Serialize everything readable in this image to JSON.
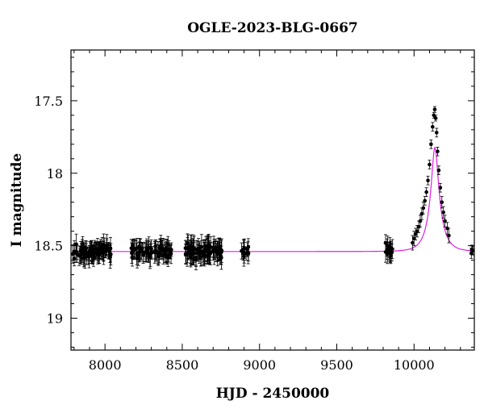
{
  "chart_data": {
    "type": "scatter",
    "title": "OGLE-2023-BLG-0667",
    "xlabel": "HJD - 2450000",
    "ylabel": "I magnitude",
    "xlim": [
      7780,
      10390
    ],
    "ylim": [
      19.22,
      17.15
    ],
    "y_inverted": true,
    "grid": false,
    "x_ticks": [
      8000,
      8500,
      9000,
      9500,
      10000
    ],
    "y_ticks": [
      17.5,
      18,
      18.5,
      19
    ],
    "x_tick_labels": [
      "8000",
      "8500",
      "9000",
      "9500",
      "10000"
    ],
    "y_tick_labels": [
      "17.5",
      "18",
      "18.5",
      "19"
    ],
    "colors": {
      "points": "#000000",
      "model": "#e020e0",
      "axes": "#000000"
    },
    "baseline_mag": 18.54,
    "clusters": [
      {
        "x_range": [
          7790,
          8040
        ],
        "mag": 18.54,
        "spread": 0.05,
        "error": 0.06,
        "count": 90
      },
      {
        "x_range": [
          8170,
          8430
        ],
        "mag": 18.54,
        "spread": 0.05,
        "error": 0.06,
        "count": 80
      },
      {
        "x_range": [
          8520,
          8760
        ],
        "mag": 18.54,
        "spread": 0.05,
        "error": 0.07,
        "count": 90
      },
      {
        "x_range": [
          8880,
          8930
        ],
        "mag": 18.54,
        "spread": 0.05,
        "error": 0.06,
        "count": 12
      },
      {
        "x_range": [
          9800,
          9860
        ],
        "mag": 18.53,
        "spread": 0.05,
        "error": 0.06,
        "count": 16
      },
      {
        "x_range": [
          10360,
          10390
        ],
        "mag": 18.53,
        "spread": 0.02,
        "error": 0.03,
        "count": 5
      }
    ],
    "event_points": [
      {
        "x": 9990,
        "y": 18.48,
        "err": 0.05
      },
      {
        "x": 10000,
        "y": 18.45,
        "err": 0.05
      },
      {
        "x": 10010,
        "y": 18.42,
        "err": 0.04
      },
      {
        "x": 10020,
        "y": 18.4,
        "err": 0.04
      },
      {
        "x": 10030,
        "y": 18.37,
        "err": 0.04
      },
      {
        "x": 10040,
        "y": 18.33,
        "err": 0.04
      },
      {
        "x": 10050,
        "y": 18.28,
        "err": 0.04
      },
      {
        "x": 10060,
        "y": 18.24,
        "err": 0.04
      },
      {
        "x": 10070,
        "y": 18.19,
        "err": 0.03
      },
      {
        "x": 10080,
        "y": 18.13,
        "err": 0.03
      },
      {
        "x": 10090,
        "y": 18.05,
        "err": 0.03
      },
      {
        "x": 10100,
        "y": 17.94,
        "err": 0.03
      },
      {
        "x": 10110,
        "y": 17.8,
        "err": 0.03
      },
      {
        "x": 10120,
        "y": 17.68,
        "err": 0.03
      },
      {
        "x": 10128,
        "y": 17.6,
        "err": 0.02
      },
      {
        "x": 10134,
        "y": 17.56,
        "err": 0.02
      },
      {
        "x": 10140,
        "y": 17.62,
        "err": 0.02
      },
      {
        "x": 10146,
        "y": 17.72,
        "err": 0.03
      },
      {
        "x": 10152,
        "y": 17.85,
        "err": 0.03
      },
      {
        "x": 10160,
        "y": 17.98,
        "err": 0.03
      },
      {
        "x": 10170,
        "y": 18.1,
        "err": 0.03
      },
      {
        "x": 10180,
        "y": 18.2,
        "err": 0.04
      },
      {
        "x": 10190,
        "y": 18.27,
        "err": 0.04
      },
      {
        "x": 10200,
        "y": 18.33,
        "err": 0.04
      },
      {
        "x": 10215,
        "y": 18.38,
        "err": 0.04
      },
      {
        "x": 10225,
        "y": 18.43,
        "err": 0.05
      }
    ],
    "model": {
      "t0": 10135,
      "tE": 75,
      "u0": 0.28,
      "fs": 0.35
    }
  }
}
